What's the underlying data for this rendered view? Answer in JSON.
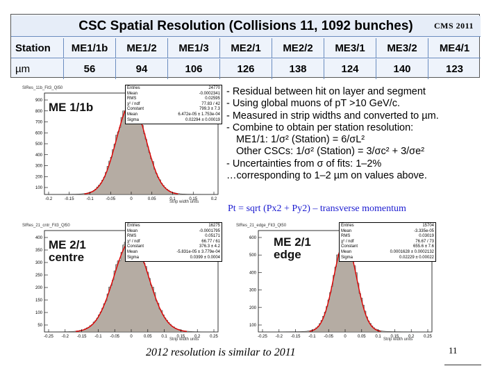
{
  "table": {
    "title": "CSC Spatial Resolution (Collisions 11, 1092 bunches)",
    "logo": "CMS 2011",
    "header_label": "Station",
    "stations": [
      "ME1/1b",
      "ME1/2",
      "ME1/3",
      "ME2/1",
      "ME2/2",
      "ME3/1",
      "ME3/2",
      "ME4/1"
    ],
    "unit_label": "µm",
    "values": [
      "56",
      "94",
      "106",
      "126",
      "138",
      "124",
      "140",
      "123"
    ]
  },
  "panels": [
    {
      "name": "SlRes_11b_Fit3_Ql50",
      "label": [
        "ME 1/1b"
      ],
      "x_unit": "Strip width units",
      "x_ticks": [
        "-0.2",
        "-0.15",
        "-0.1",
        "-0.05",
        "0",
        "0.05",
        "0.1",
        "0.15",
        "0.2"
      ],
      "y_ticks": [
        "900",
        "800",
        "700",
        "600",
        "500",
        "400",
        "300",
        "200",
        "100"
      ],
      "stats": [
        [
          "Entries",
          "24770"
        ],
        [
          "Mean",
          "-0.0002341"
        ],
        [
          "RMS",
          "0.02595"
        ],
        [
          "χ² / ndf",
          "77.83 / 42"
        ],
        [
          "Constant",
          "799.3 ± 7.3"
        ],
        [
          "Mean",
          "6.472e-05 ± 1.753e-04"
        ],
        [
          "Sigma",
          "0.02294 ± 0.00019"
        ]
      ]
    },
    {
      "name": "SlRes_21_cntr_Fit3_Ql50",
      "label": [
        "ME 2/1",
        "centre"
      ],
      "x_unit": "Strip width units",
      "x_ticks": [
        "-0.25",
        "-0.2",
        "-0.15",
        "-0.1",
        "-0.05",
        "0",
        "0.05",
        "0.1",
        "0.15",
        "0.2",
        "0.25"
      ],
      "y_ticks": [
        "400",
        "350",
        "300",
        "250",
        "200",
        "150",
        "100",
        "50"
      ],
      "stats": [
        [
          "Entries",
          "16275"
        ],
        [
          "Mean",
          "-0.0001795"
        ],
        [
          "RMS",
          "0.05171"
        ],
        [
          "χ² / ndf",
          "66.77 / 61"
        ],
        [
          "Constant",
          "376.3 ± 4.2"
        ],
        [
          "Mean",
          "-5.831e-05 ± 3.779e-04"
        ],
        [
          "Sigma",
          "0.0399 ± 0.0004"
        ]
      ]
    },
    {
      "name": "SlRes_21_edge_Fit3_Ql50",
      "label": [
        "ME 2/1",
        "edge"
      ],
      "x_unit": "Strip width units",
      "x_ticks": [
        "-0.25",
        "-0.2",
        "-0.15",
        "-0.1",
        "-0.05",
        "0",
        "0.05",
        "0.1",
        "0.15",
        "0.2",
        "0.25"
      ],
      "y_ticks": [
        "600",
        "500",
        "400",
        "300",
        "200",
        "100"
      ],
      "stats": [
        [
          "Entries",
          "15704"
        ],
        [
          "Mean",
          "-3.335e-05"
        ],
        [
          "RMS",
          "0.03019"
        ],
        [
          "χ² / ndf",
          "76.67 / 73"
        ],
        [
          "Constant",
          "655.6 ± 7.6"
        ],
        [
          "Mean",
          "0.0001628 ± 0.0002132"
        ],
        [
          "Sigma",
          "0.02229 ± 0.00022"
        ]
      ]
    }
  ],
  "bullets": [
    "- Residual between hit on layer and segment",
    "- Using global muons of pT >10 GeV/c.",
    "- Measured in strip widths and converted to µm.",
    "- Combine to obtain per station resolution:",
    "  ME1/1: 1/σ² (Station) = 6/σL²",
    "  Other CSCs: 1/σ² (Station) = 3/σc² + 3/σe²",
    "- Uncertainties from σ of fits:  1–2%",
    "…corresponding to 1–2 µm on values above."
  ],
  "pt_line": "Pt = sqrt (Px2 + Py2) – transverse  momentum",
  "caption": "2012 resolution is similar to 2011",
  "slide_number": "11"
}
